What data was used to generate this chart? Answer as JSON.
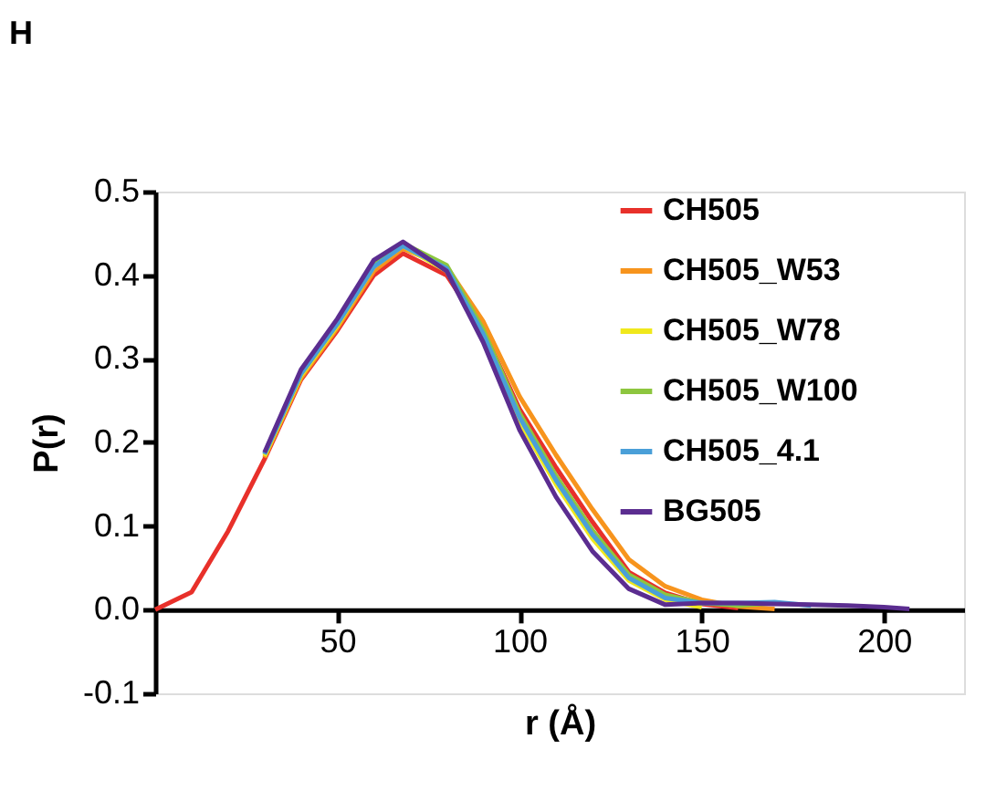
{
  "chart_data": {
    "type": "line",
    "title": "H",
    "xlabel": "r (Å)",
    "ylabel": "P(r)",
    "x": [
      30,
      40,
      50,
      60,
      68,
      80,
      90,
      100,
      110,
      120,
      130,
      140,
      150,
      160,
      170,
      180,
      190,
      200,
      207
    ],
    "series": [
      {
        "name": "CH505",
        "color": "#e8302a",
        "x": [
          0,
          10,
          20,
          30,
          40,
          50,
          60,
          68,
          80,
          90,
          100,
          110,
          120,
          130,
          140,
          150,
          160
        ],
        "values": [
          0,
          0.021,
          0.094,
          0.18,
          0.275,
          0.334,
          0.4,
          0.426,
          0.4,
          0.334,
          0.24,
          0.17,
          0.105,
          0.045,
          0.02,
          0.007,
          0.002
        ]
      },
      {
        "name": "CH505_W53",
        "color": "#f7941d",
        "values": [
          0.182,
          0.277,
          0.337,
          0.405,
          0.432,
          0.41,
          0.345,
          0.255,
          0.185,
          0.12,
          0.06,
          0.028,
          0.012,
          0.004,
          0.001,
          null,
          null,
          null,
          null
        ]
      },
      {
        "name": "CH505_W78",
        "color": "#f0e81c",
        "values": [
          0.184,
          0.28,
          0.34,
          0.41,
          0.435,
          0.405,
          0.325,
          0.225,
          0.15,
          0.085,
          0.035,
          0.012,
          0.003,
          null,
          null,
          null,
          null,
          null,
          null
        ]
      },
      {
        "name": "CH505_W100",
        "color": "#8dc63f",
        "values": [
          0.186,
          0.282,
          0.342,
          0.412,
          0.438,
          0.412,
          0.335,
          0.235,
          0.16,
          0.095,
          0.042,
          0.018,
          0.008,
          0.005,
          0.008,
          null,
          null,
          null,
          null
        ]
      },
      {
        "name": "CH505_4.1",
        "color": "#4a9fd8",
        "values": [
          0.186,
          0.282,
          0.342,
          0.41,
          0.435,
          0.408,
          0.33,
          0.23,
          0.155,
          0.09,
          0.038,
          0.014,
          0.008,
          0.008,
          0.009,
          0.005,
          null,
          null,
          null
        ]
      },
      {
        "name": "BG505",
        "color": "#5b2d90",
        "values": [
          0.188,
          0.287,
          0.348,
          0.418,
          0.44,
          0.405,
          0.32,
          0.215,
          0.135,
          0.07,
          0.025,
          0.006,
          0.008,
          0.008,
          0.007,
          0.006,
          0.005,
          0.003,
          0.001
        ]
      }
    ],
    "xlim": [
      0,
      222
    ],
    "xticks": [
      50,
      100,
      150,
      200
    ],
    "ylim": [
      -0.1,
      0.5
    ],
    "yticks": [
      {
        "value": -0.1,
        "label": "-0.1"
      },
      {
        "value": 0,
        "label": "0.0"
      },
      0.1,
      0.2,
      0.3,
      0.4,
      0.5
    ],
    "grid": false,
    "legend": "top right",
    "marker": "none",
    "line_style": "solid"
  }
}
